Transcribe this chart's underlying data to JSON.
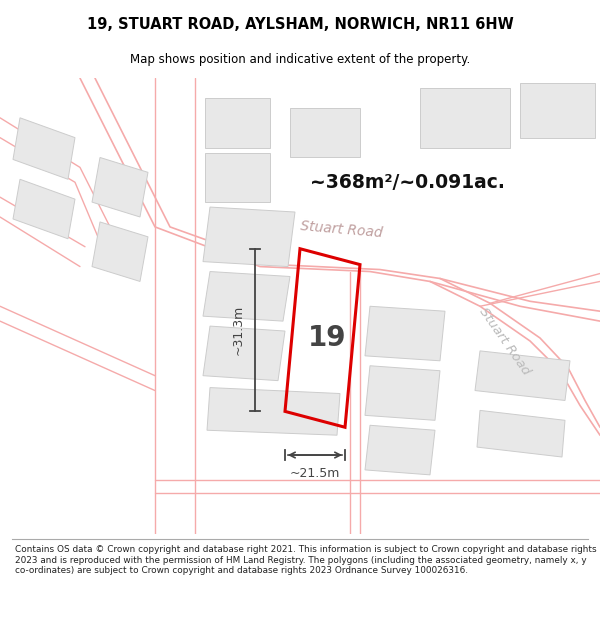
{
  "title": "19, STUART ROAD, AYLSHAM, NORWICH, NR11 6HW",
  "subtitle": "Map shows position and indicative extent of the property.",
  "area_text": "~368m²/~0.091ac.",
  "label_19": "19",
  "dim_width": "~21.5m",
  "dim_height": "~31.3m",
  "road_label1": "Stuart Road",
  "road_label2": "Stuart Road",
  "footer": "Contains OS data © Crown copyright and database right 2021. This information is subject to Crown copyright and database rights 2023 and is reproduced with the permission of HM Land Registry. The polygons (including the associated geometry, namely x, y co-ordinates) are subject to Crown copyright and database rights 2023 Ordnance Survey 100026316.",
  "map_bg": "#ffffff",
  "plot_color": "#dd0000",
  "road_line_color": "#f5aaaa",
  "road_text_color": "#bbbbbb",
  "building_fill": "#e8e8e8",
  "building_edge": "#cccccc",
  "dim_color": "#444444",
  "area_color": "#111111",
  "title_color": "#000000",
  "fig_bg": "#ffffff",
  "footer_line_color": "#aaaaaa"
}
